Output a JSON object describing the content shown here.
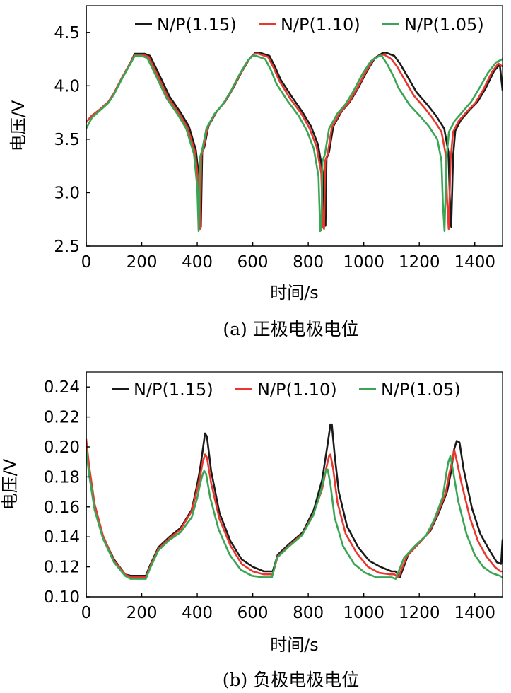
{
  "chart_data": [
    {
      "type": "line",
      "title": "(a) 正极电极电位",
      "xlabel": "时间/s",
      "ylabel": "电压/V",
      "xlim": [
        0,
        1500
      ],
      "ylim": [
        2.5,
        4.75
      ],
      "xticks": [
        0,
        200,
        400,
        600,
        800,
        1000,
        1200,
        1400
      ],
      "yticks": [
        2.5,
        3.0,
        3.5,
        4.0,
        4.5
      ],
      "xtick_labels": [
        "0",
        "200",
        "400",
        "600",
        "800",
        "1000",
        "1200",
        "1400"
      ],
      "ytick_labels": [
        "2.5",
        "3.0",
        "3.5",
        "4.0",
        "4.5"
      ],
      "legend_position": "top-right",
      "series": [
        {
          "name": "N/P(1.15)",
          "color": "#1a1a1a",
          "x": [
            0,
            20,
            50,
            80,
            100,
            130,
            160,
            175,
            210,
            230,
            260,
            300,
            340,
            370,
            395,
            408,
            413,
            418,
            425,
            440,
            470,
            500,
            530,
            560,
            590,
            610,
            625,
            660,
            680,
            700,
            740,
            780,
            810,
            835,
            852,
            858,
            862,
            866,
            875,
            890,
            920,
            950,
            980,
            1010,
            1040,
            1070,
            1080,
            1110,
            1130,
            1150,
            1190,
            1230,
            1260,
            1290,
            1305,
            1310,
            1315,
            1322,
            1330,
            1350,
            1380,
            1410,
            1440,
            1470,
            1490,
            1500
          ],
          "y": [
            3.66,
            3.72,
            3.78,
            3.85,
            3.93,
            4.08,
            4.22,
            4.3,
            4.3,
            4.28,
            4.12,
            3.9,
            3.75,
            3.62,
            3.4,
            3.1,
            2.68,
            3.38,
            3.42,
            3.62,
            3.76,
            3.85,
            3.98,
            4.13,
            4.26,
            4.31,
            4.31,
            4.28,
            4.18,
            4.06,
            3.9,
            3.75,
            3.62,
            3.45,
            3.2,
            2.72,
            2.69,
            3.32,
            3.38,
            3.62,
            3.76,
            3.85,
            3.98,
            4.13,
            4.26,
            4.31,
            4.31,
            4.28,
            4.21,
            4.12,
            3.94,
            3.82,
            3.72,
            3.6,
            3.38,
            2.96,
            2.68,
            3.34,
            3.58,
            3.68,
            3.77,
            3.85,
            3.98,
            4.14,
            4.2,
            3.96
          ]
        },
        {
          "name": "N/P(1.10)",
          "color": "#e8382e",
          "x": [
            0,
            20,
            50,
            80,
            100,
            130,
            160,
            175,
            205,
            225,
            255,
            295,
            335,
            365,
            392,
            405,
            410,
            415,
            422,
            437,
            467,
            497,
            527,
            557,
            587,
            607,
            620,
            655,
            675,
            695,
            735,
            775,
            805,
            830,
            847,
            853,
            857,
            861,
            870,
            885,
            915,
            945,
            975,
            1005,
            1035,
            1065,
            1075,
            1100,
            1120,
            1140,
            1180,
            1220,
            1250,
            1280,
            1295,
            1300,
            1306,
            1313,
            1322,
            1342,
            1372,
            1402,
            1432,
            1462,
            1485,
            1500
          ],
          "y": [
            3.66,
            3.72,
            3.78,
            3.85,
            3.93,
            4.08,
            4.22,
            4.29,
            4.29,
            4.27,
            4.11,
            3.89,
            3.74,
            3.61,
            3.38,
            3.08,
            2.66,
            3.35,
            3.41,
            3.61,
            3.75,
            3.84,
            3.97,
            4.12,
            4.25,
            4.3,
            4.3,
            4.27,
            4.17,
            4.05,
            3.88,
            3.74,
            3.6,
            3.43,
            3.18,
            2.68,
            2.66,
            3.3,
            3.36,
            3.61,
            3.75,
            3.84,
            3.97,
            4.12,
            4.25,
            4.29,
            4.29,
            4.25,
            4.18,
            4.09,
            3.91,
            3.79,
            3.69,
            3.57,
            3.36,
            2.94,
            2.66,
            3.32,
            3.57,
            3.67,
            3.76,
            3.84,
            3.97,
            4.13,
            4.21,
            4.18
          ]
        },
        {
          "name": "N/P(1.05)",
          "color": "#3aa655",
          "x": [
            0,
            20,
            50,
            80,
            100,
            130,
            160,
            175,
            200,
            220,
            250,
            290,
            330,
            360,
            388,
            400,
            405,
            410,
            418,
            433,
            463,
            493,
            523,
            553,
            583,
            600,
            612,
            645,
            665,
            685,
            725,
            765,
            795,
            820,
            837,
            843,
            847,
            851,
            860,
            875,
            905,
            935,
            965,
            995,
            1025,
            1055,
            1065,
            1085,
            1105,
            1125,
            1165,
            1205,
            1235,
            1265,
            1280,
            1285,
            1291,
            1298,
            1307,
            1327,
            1357,
            1387,
            1417,
            1447,
            1477,
            1500
          ],
          "y": [
            3.6,
            3.7,
            3.77,
            3.84,
            3.92,
            4.07,
            4.21,
            4.28,
            4.28,
            4.26,
            4.1,
            3.88,
            3.73,
            3.6,
            3.36,
            3.05,
            2.64,
            3.33,
            3.4,
            3.6,
            3.74,
            3.83,
            3.96,
            4.11,
            4.24,
            4.28,
            4.28,
            4.25,
            4.15,
            4.02,
            3.86,
            3.72,
            3.58,
            3.41,
            3.15,
            2.64,
            2.65,
            3.29,
            3.36,
            3.6,
            3.74,
            3.83,
            3.96,
            4.11,
            4.23,
            4.28,
            4.28,
            4.2,
            4.1,
            3.98,
            3.82,
            3.71,
            3.62,
            3.5,
            3.3,
            2.9,
            2.64,
            3.32,
            3.57,
            3.67,
            3.76,
            3.85,
            3.98,
            4.12,
            4.22,
            4.25
          ]
        }
      ]
    },
    {
      "type": "line",
      "title": "(b) 负极电极电位",
      "xlabel": "时间/s",
      "ylabel": "电压/V",
      "xlim": [
        0,
        1500
      ],
      "ylim": [
        0.1,
        0.25
      ],
      "xticks": [
        0,
        200,
        400,
        600,
        800,
        1000,
        1200,
        1400
      ],
      "yticks": [
        0.1,
        0.12,
        0.14,
        0.16,
        0.18,
        0.2,
        0.22,
        0.24
      ],
      "xtick_labels": [
        "0",
        "200",
        "400",
        "600",
        "800",
        "1000",
        "1200",
        "1400"
      ],
      "ytick_labels": [
        "0.10",
        "0.12",
        "0.14",
        "0.16",
        "0.18",
        "0.20",
        "0.22",
        "0.24"
      ],
      "legend_position": "top-right",
      "series": [
        {
          "name": "N/P(1.15)",
          "color": "#1a1a1a",
          "x": [
            0,
            10,
            30,
            60,
            100,
            140,
            160,
            200,
            215,
            230,
            260,
            300,
            340,
            380,
            400,
            410,
            420,
            428,
            435,
            450,
            480,
            520,
            560,
            600,
            640,
            660,
            672,
            690,
            730,
            780,
            820,
            850,
            870,
            880,
            885,
            895,
            910,
            940,
            980,
            1020,
            1060,
            1100,
            1115,
            1130,
            1160,
            1200,
            1240,
            1270,
            1300,
            1315,
            1325,
            1335,
            1345,
            1360,
            1390,
            1420,
            1450,
            1480,
            1495,
            1500
          ],
          "y": [
            0.2,
            0.185,
            0.16,
            0.14,
            0.125,
            0.115,
            0.114,
            0.114,
            0.114,
            0.121,
            0.133,
            0.14,
            0.146,
            0.158,
            0.175,
            0.185,
            0.198,
            0.209,
            0.207,
            0.184,
            0.156,
            0.137,
            0.125,
            0.12,
            0.117,
            0.117,
            0.117,
            0.128,
            0.135,
            0.143,
            0.158,
            0.178,
            0.202,
            0.215,
            0.215,
            0.195,
            0.17,
            0.147,
            0.133,
            0.124,
            0.12,
            0.117,
            0.117,
            0.113,
            0.128,
            0.136,
            0.144,
            0.156,
            0.17,
            0.184,
            0.198,
            0.204,
            0.203,
            0.185,
            0.159,
            0.142,
            0.132,
            0.123,
            0.122,
            0.138
          ]
        },
        {
          "name": "N/P(1.10)",
          "color": "#e8382e",
          "x": [
            0,
            10,
            30,
            60,
            100,
            140,
            160,
            200,
            215,
            230,
            260,
            300,
            340,
            380,
            400,
            410,
            420,
            428,
            435,
            450,
            480,
            520,
            560,
            600,
            640,
            660,
            672,
            690,
            730,
            780,
            820,
            850,
            865,
            875,
            880,
            890,
            905,
            935,
            975,
            1015,
            1055,
            1095,
            1110,
            1125,
            1155,
            1195,
            1235,
            1265,
            1295,
            1308,
            1318,
            1326,
            1336,
            1352,
            1382,
            1412,
            1442,
            1472,
            1492,
            1500
          ],
          "y": [
            0.205,
            0.188,
            0.162,
            0.141,
            0.124,
            0.115,
            0.113,
            0.113,
            0.113,
            0.12,
            0.132,
            0.139,
            0.145,
            0.157,
            0.172,
            0.18,
            0.19,
            0.195,
            0.193,
            0.176,
            0.152,
            0.134,
            0.122,
            0.117,
            0.115,
            0.115,
            0.115,
            0.127,
            0.134,
            0.142,
            0.156,
            0.172,
            0.186,
            0.194,
            0.195,
            0.185,
            0.163,
            0.142,
            0.129,
            0.12,
            0.116,
            0.115,
            0.115,
            0.113,
            0.127,
            0.135,
            0.143,
            0.155,
            0.169,
            0.182,
            0.19,
            0.198,
            0.19,
            0.176,
            0.153,
            0.137,
            0.127,
            0.12,
            0.117,
            0.117
          ]
        },
        {
          "name": "N/P(1.05)",
          "color": "#3aa655",
          "x": [
            0,
            10,
            30,
            60,
            100,
            140,
            160,
            200,
            215,
            230,
            260,
            300,
            340,
            380,
            400,
            410,
            420,
            425,
            432,
            447,
            477,
            517,
            557,
            597,
            637,
            657,
            669,
            687,
            727,
            777,
            817,
            845,
            858,
            866,
            870,
            880,
            895,
            925,
            965,
            1005,
            1045,
            1085,
            1100,
            1115,
            1145,
            1185,
            1225,
            1255,
            1285,
            1297,
            1305,
            1312,
            1320,
            1340,
            1370,
            1400,
            1430,
            1460,
            1490,
            1500
          ],
          "y": [
            0.198,
            0.182,
            0.158,
            0.139,
            0.123,
            0.114,
            0.112,
            0.112,
            0.112,
            0.119,
            0.131,
            0.138,
            0.143,
            0.153,
            0.166,
            0.175,
            0.182,
            0.184,
            0.182,
            0.166,
            0.145,
            0.128,
            0.118,
            0.114,
            0.113,
            0.113,
            0.113,
            0.126,
            0.133,
            0.141,
            0.154,
            0.17,
            0.181,
            0.185,
            0.185,
            0.175,
            0.153,
            0.134,
            0.122,
            0.116,
            0.113,
            0.113,
            0.113,
            0.112,
            0.126,
            0.134,
            0.141,
            0.152,
            0.167,
            0.182,
            0.19,
            0.194,
            0.186,
            0.164,
            0.142,
            0.128,
            0.12,
            0.116,
            0.114,
            0.113
          ]
        }
      ]
    }
  ]
}
